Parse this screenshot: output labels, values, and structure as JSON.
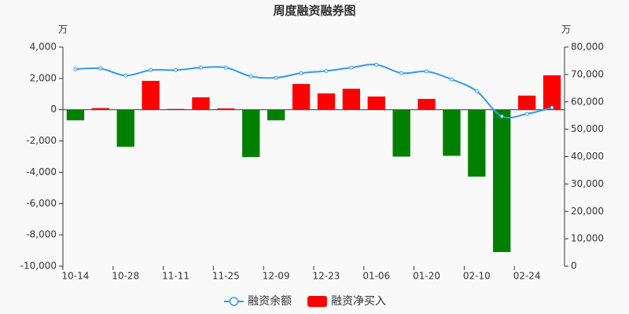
{
  "chart_data": {
    "type": "bar_line",
    "title": "周度融资融券图",
    "y_label": "万",
    "y2_label": "万",
    "categories": [
      "10-14",
      null,
      "10-28",
      null,
      "11-11",
      null,
      "11-25",
      null,
      "12-09",
      null,
      "12-23",
      null,
      "01-06",
      null,
      "01-20",
      null,
      "02-10",
      null,
      "02-24",
      null
    ],
    "series": [
      {
        "name": "融资余额",
        "type": "line",
        "axis": "y2",
        "color": "#3399ee",
        "values": [
          71900,
          72200,
          69600,
          71600,
          71600,
          72500,
          72500,
          69300,
          68800,
          70500,
          71300,
          72500,
          73600,
          70500,
          71100,
          68200,
          63900,
          54700,
          55600,
          57900
        ]
      },
      {
        "name": "融资净买入",
        "type": "bar",
        "color": "#ff0000",
        "negative_color": "#008000",
        "values": [
          -680,
          100,
          -2370,
          1840,
          50,
          790,
          80,
          -3030,
          -680,
          1640,
          1040,
          1340,
          840,
          -3000,
          690,
          -2950,
          -4280,
          -9100,
          900,
          2200
        ]
      }
    ],
    "ylim": [
      -10000,
      4000
    ],
    "yticks": [
      {
        "value": -10000,
        "label": "-10,000"
      },
      {
        "value": -8000,
        "label": "-8,000"
      },
      {
        "value": -6000,
        "label": "-6,000"
      },
      {
        "value": -4000,
        "label": "-4,000"
      },
      {
        "value": -2000,
        "label": "-2,000"
      },
      0,
      {
        "value": 2000,
        "label": "2,000"
      },
      {
        "value": 4000,
        "label": "4,000"
      }
    ],
    "y2lim": [
      0,
      80000
    ],
    "y2ticks": [
      0,
      {
        "value": 10000,
        "label": "10,000"
      },
      {
        "value": 20000,
        "label": "20,000"
      },
      {
        "value": 30000,
        "label": "30,000"
      },
      {
        "value": 40000,
        "label": "40,000"
      },
      {
        "value": 50000,
        "label": "50,000"
      },
      {
        "value": 60000,
        "label": "60,000"
      },
      {
        "value": 70000,
        "label": "70,000"
      },
      {
        "value": 80000,
        "label": "80,000"
      }
    ],
    "legend": "bottom"
  }
}
